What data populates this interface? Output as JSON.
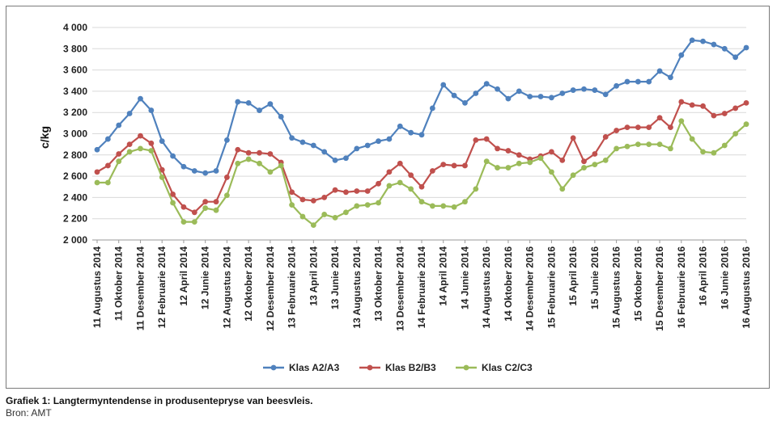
{
  "caption": "Grafiek 1: Langtermyntendense in produsentepryse van beesvleis.",
  "source": "Bron: AMT",
  "chart_data": {
    "type": "line",
    "title": "",
    "xlabel": "",
    "ylabel": "c/kg",
    "ylim": [
      2000,
      4000
    ],
    "yticks": [
      2000,
      2200,
      2400,
      2600,
      2800,
      3000,
      3200,
      3400,
      3600,
      3800,
      4000
    ],
    "ytick_labels": [
      "2 000",
      "2 200",
      "2 400",
      "2 600",
      "2 800",
      "3 000",
      "3 200",
      "3 400",
      "3 600",
      "3 800",
      "4 000"
    ],
    "grid": "horizontal",
    "legend_position": "bottom",
    "xtick_labels": [
      "11 Augustus 2014",
      "11 Oktober 2014",
      "11 Desember 2014",
      "12 Februarie 2014",
      "12 April 2014",
      "12 Junie 2014",
      "12 Augustus 2014",
      "12 Oktober 2014",
      "12 Desember 2014",
      "13 Februarie 2014",
      "13 April 2014",
      "13 Junie 2014",
      "13 Augustus 2014",
      "13 Oktober 2014",
      "13 Desember 2014",
      "14 Februarie 2014",
      "14 April 2014",
      "14 Junie 2014",
      "14 Augustus 2016",
      "14 Oktober 2016",
      "14 Desember 2016",
      "15 Februarie 2016",
      "15 April 2016",
      "15 Junie 2016",
      "15 Augustus 2016",
      "15 Oktober 2016",
      "15 Desember 2016",
      "16 Februarie 2016",
      "16 April 2016",
      "16 Junie 2016",
      "16 Augustus 2016"
    ],
    "series": [
      {
        "name": "Klas A2/A3",
        "color": "#4f81bd",
        "values": [
          2850,
          2950,
          3080,
          3190,
          3330,
          3220,
          2930,
          2790,
          2690,
          2650,
          2630,
          2650,
          2940,
          3300,
          3290,
          3220,
          3280,
          3160,
          2960,
          2920,
          2890,
          2830,
          2750,
          2770,
          2860,
          2890,
          2930,
          2950,
          3070,
          3010,
          2990,
          3240,
          3460,
          3360,
          3290,
          3380,
          3470,
          3420,
          3330,
          3400,
          3350,
          3350,
          3340,
          3380,
          3410,
          3420,
          3410,
          3370,
          3450,
          3490,
          3490,
          3490,
          3590,
          3530,
          3740,
          3880,
          3870,
          3840,
          3800,
          3720,
          3810
        ]
      },
      {
        "name": "Klas B2/B3",
        "color": "#c0504d",
        "values": [
          2640,
          2700,
          2810,
          2900,
          2980,
          2910,
          2660,
          2430,
          2310,
          2260,
          2360,
          2360,
          2590,
          2850,
          2820,
          2820,
          2810,
          2730,
          2450,
          2380,
          2370,
          2400,
          2470,
          2450,
          2460,
          2460,
          2530,
          2640,
          2720,
          2610,
          2500,
          2650,
          2710,
          2700,
          2700,
          2940,
          2950,
          2860,
          2840,
          2800,
          2760,
          2790,
          2830,
          2750,
          2960,
          2740,
          2810,
          2970,
          3030,
          3060,
          3060,
          3060,
          3150,
          3060,
          3300,
          3270,
          3260,
          3170,
          3190,
          3240,
          3290
        ]
      },
      {
        "name": "Klas C2/C3",
        "color": "#9bbb59",
        "values": [
          2540,
          2540,
          2740,
          2830,
          2860,
          2840,
          2590,
          2350,
          2170,
          2170,
          2300,
          2280,
          2420,
          2720,
          2760,
          2720,
          2640,
          2700,
          2330,
          2220,
          2140,
          2240,
          2210,
          2260,
          2320,
          2330,
          2350,
          2510,
          2540,
          2480,
          2360,
          2320,
          2320,
          2310,
          2360,
          2480,
          2740,
          2680,
          2680,
          2720,
          2730,
          2770,
          2640,
          2480,
          2610,
          2680,
          2710,
          2750,
          2860,
          2880,
          2900,
          2900,
          2900,
          2860,
          3120,
          2950,
          2830,
          2820,
          2890,
          3000,
          3090
        ]
      }
    ]
  }
}
